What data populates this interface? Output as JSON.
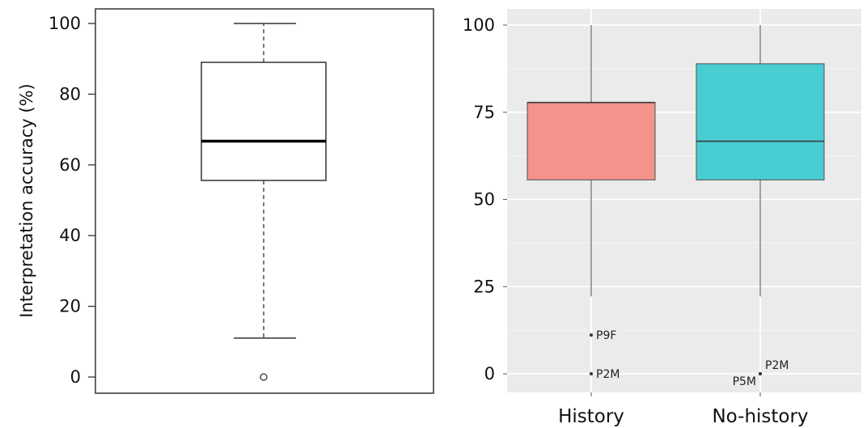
{
  "chart_data": [
    {
      "type": "box",
      "style": "base-graphics",
      "ylabel": "Interpretation accuracy (%)",
      "ylim": [
        -5,
        103
      ],
      "yticks": [
        0,
        20,
        40,
        60,
        80,
        100
      ],
      "box": {
        "min": 11,
        "q1": 55.6,
        "median": 66.7,
        "q3": 89,
        "max": 100
      },
      "outliers": [
        0
      ],
      "grid": false
    },
    {
      "type": "box",
      "style": "ggplot",
      "categories": [
        "History",
        "No-history"
      ],
      "ylim": [
        -5,
        105
      ],
      "yticks": [
        0,
        25,
        50,
        75,
        100
      ],
      "colors": {
        "History": "#F3938B",
        "No-history": "#48CDD3"
      },
      "panel_background": "#EBEBEB",
      "grid": true,
      "boxes": [
        {
          "category": "History",
          "min": 22.2,
          "q1": 55.6,
          "median": 77.8,
          "q3": 77.8,
          "max": 100,
          "outliers": [
            {
              "value": 11.1,
              "label": "P9F"
            },
            {
              "value": 0,
              "label": "P2M"
            }
          ]
        },
        {
          "category": "No-history",
          "min": 22.2,
          "q1": 55.6,
          "median": 66.7,
          "q3": 88.9,
          "max": 100,
          "outliers": [
            {
              "value": 0,
              "label": "P2M"
            },
            {
              "value": 0,
              "label": "P5M"
            }
          ]
        }
      ]
    }
  ]
}
